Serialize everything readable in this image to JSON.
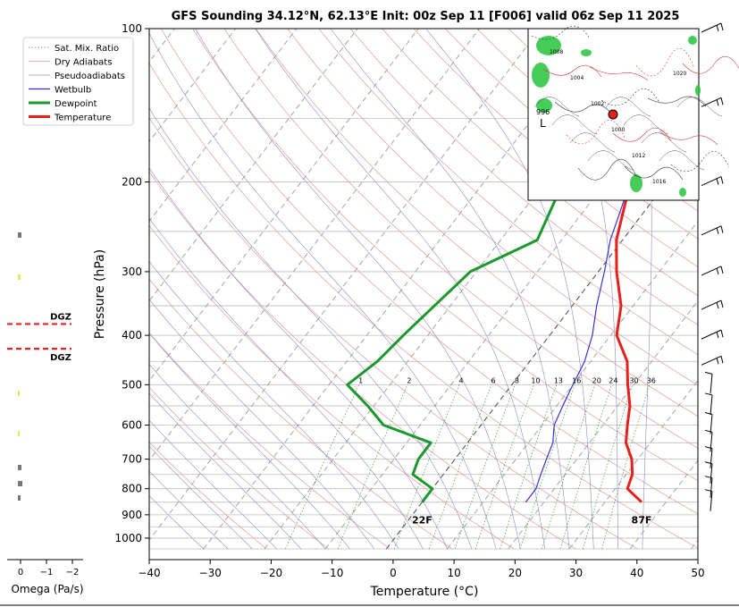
{
  "chart_data": {
    "type": "line",
    "title": "GFS Sounding 34.12°N, 62.13°E Init: 00z Sep 11 [F006] valid 06z Sep 11 2025",
    "xlabel": "Temperature (°C)",
    "ylabel": "Pressure (hPa)",
    "xlim": [
      -40,
      50
    ],
    "ylim": [
      1050,
      100
    ],
    "y_scale": "log",
    "x_ticks": [
      "−40",
      "−30",
      "−20",
      "−10",
      "0",
      "10",
      "20",
      "30",
      "40",
      "50"
    ],
    "y_ticks": [
      "100",
      "200",
      "300",
      "400",
      "500",
      "600",
      "700",
      "800",
      "900",
      "1000"
    ],
    "legend": [
      "Sat. Mix. Ratio",
      "Dry Adiabats",
      "Pseudoadiabats",
      "Wetbulb",
      "Dewpoint",
      "Temperature"
    ],
    "legend_position": "top-left",
    "mixing_ratio_labels": [
      "1",
      "2",
      "4",
      "6",
      "8",
      "10",
      "13",
      "16",
      "20",
      "24",
      "30",
      "36"
    ],
    "series": [
      {
        "name": "Temperature",
        "color": "#e8201a",
        "points": [
          [
            -12,
            100
          ],
          [
            -11,
            145
          ],
          [
            -6,
            200
          ],
          [
            -1,
            260
          ],
          [
            3,
            300
          ],
          [
            8,
            350
          ],
          [
            11,
            400
          ],
          [
            16,
            450
          ],
          [
            19,
            500
          ],
          [
            22,
            550
          ],
          [
            24,
            600
          ],
          [
            26,
            650
          ],
          [
            29,
            700
          ],
          [
            31,
            750
          ],
          [
            32,
            800
          ],
          [
            36,
            850
          ]
        ]
      },
      {
        "name": "Dewpoint",
        "color": "#1a9a2e",
        "points": [
          [
            -18,
            100
          ],
          [
            -17,
            200
          ],
          [
            -14,
            260
          ],
          [
            -21,
            300
          ],
          [
            -24,
            400
          ],
          [
            -25,
            450
          ],
          [
            -27,
            500
          ],
          [
            -21,
            550
          ],
          [
            -16,
            600
          ],
          [
            -6,
            650
          ],
          [
            -6,
            700
          ],
          [
            -5,
            750
          ],
          [
            0,
            800
          ],
          [
            0,
            850
          ]
        ]
      },
      {
        "name": "Wetbulb",
        "color": "#3a2fd0",
        "points": [
          [
            -11,
            145
          ],
          [
            -6,
            200
          ],
          [
            -2,
            260
          ],
          [
            1,
            300
          ],
          [
            4,
            350
          ],
          [
            7,
            400
          ],
          [
            9,
            450
          ],
          [
            10,
            500
          ],
          [
            11,
            550
          ],
          [
            12,
            600
          ],
          [
            14,
            650
          ],
          [
            15,
            700
          ],
          [
            16,
            750
          ],
          [
            17,
            800
          ],
          [
            17,
            850
          ]
        ]
      }
    ],
    "annotations": [
      {
        "text": "22F",
        "x": 0,
        "p": 850,
        "color": "#1a9a2e"
      },
      {
        "text": "87F",
        "x": 36,
        "p": 850,
        "color": "#e8201a"
      }
    ]
  },
  "omega": {
    "xlabel": "Omega (Pa/s)",
    "ticks": [
      "0",
      "−1",
      "−2"
    ],
    "dgz_label": "DGZ",
    "dgz_pressures": [
      380,
      425
    ]
  },
  "inset_map": {
    "marker": {
      "lat": 34.12,
      "lon": 62.13
    },
    "low_label": "L",
    "pressure_label": "996",
    "isobar_labels": [
      "1008",
      "1004",
      "1002",
      "1000",
      "1012",
      "1016",
      "1020"
    ]
  },
  "wind_barbs_count": 18
}
